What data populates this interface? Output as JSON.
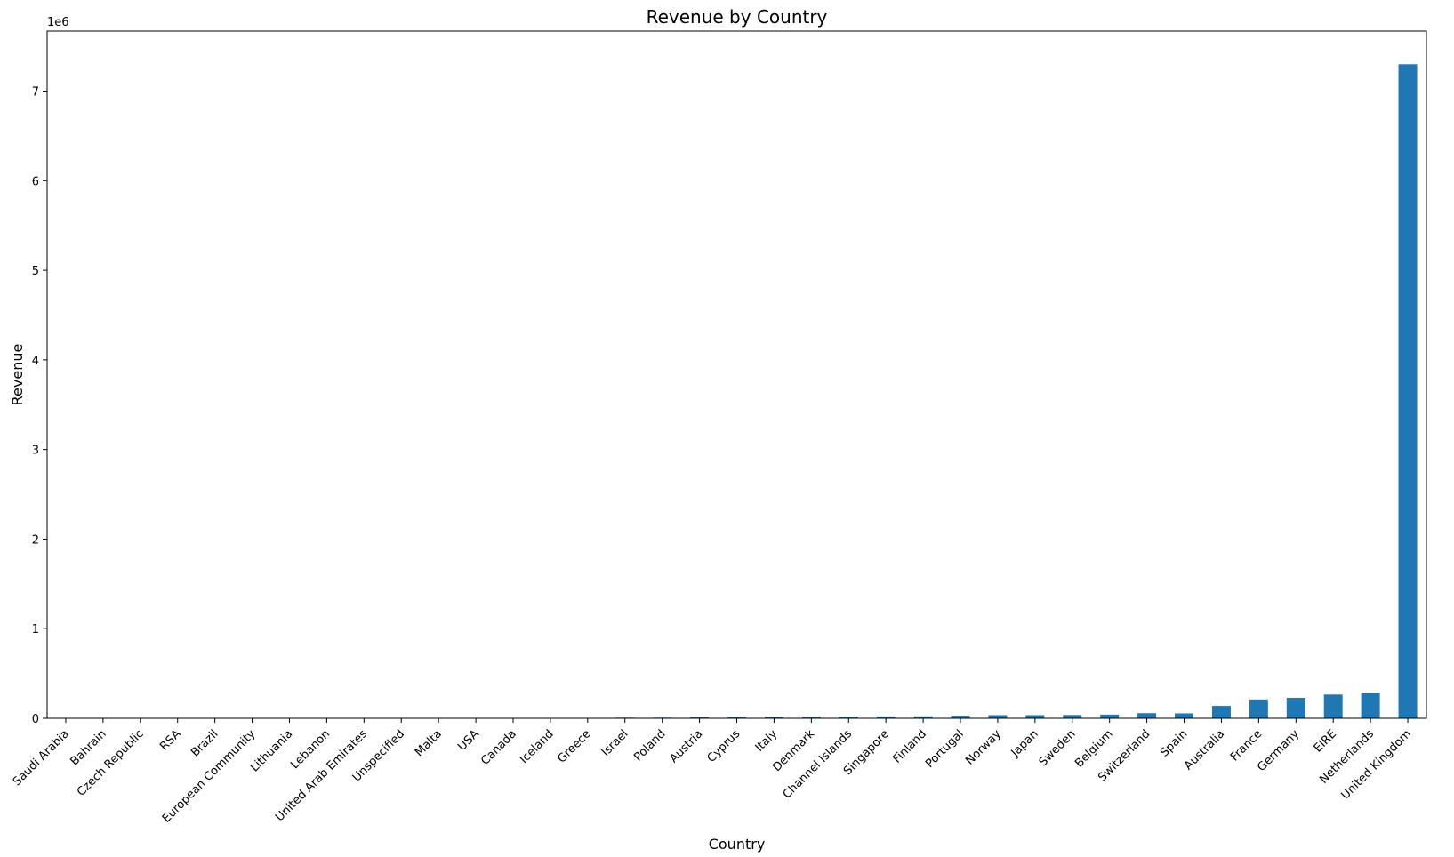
{
  "chart_data": {
    "type": "bar",
    "title": "Revenue by Country",
    "xlabel": "Country",
    "ylabel": "Revenue",
    "y_offset_label": "1e6",
    "ylim": [
      0,
      7.67
    ],
    "yticks": [
      0,
      1,
      2,
      3,
      4,
      5,
      6,
      7
    ],
    "grid": false,
    "bar_color": "#1f77b4",
    "categories": [
      "Saudi Arabia",
      "Bahrain",
      "Czech Republic",
      "RSA",
      "Brazil",
      "European Community",
      "Lithuania",
      "Lebanon",
      "United Arab Emirates",
      "Unspecified",
      "Malta",
      "USA",
      "Canada",
      "Iceland",
      "Greece",
      "Israel",
      "Poland",
      "Austria",
      "Cyprus",
      "Italy",
      "Denmark",
      "Channel Islands",
      "Singapore",
      "Finland",
      "Portugal",
      "Norway",
      "Japan",
      "Sweden",
      "Belgium",
      "Switzerland",
      "Spain",
      "Australia",
      "France",
      "Germany",
      "EIRE",
      "Netherlands",
      "United Kingdom"
    ],
    "values": [
      0.0001,
      0.0005,
      0.0007,
      0.001,
      0.0011,
      0.0013,
      0.0017,
      0.0017,
      0.0019,
      0.0024,
      0.0025,
      0.0027,
      0.0037,
      0.0043,
      0.0047,
      0.0074,
      0.0072,
      0.01,
      0.013,
      0.017,
      0.019,
      0.02,
      0.021,
      0.022,
      0.029,
      0.035,
      0.035,
      0.037,
      0.041,
      0.057,
      0.055,
      0.138,
      0.21,
      0.228,
      0.265,
      0.285,
      7.3
    ]
  }
}
